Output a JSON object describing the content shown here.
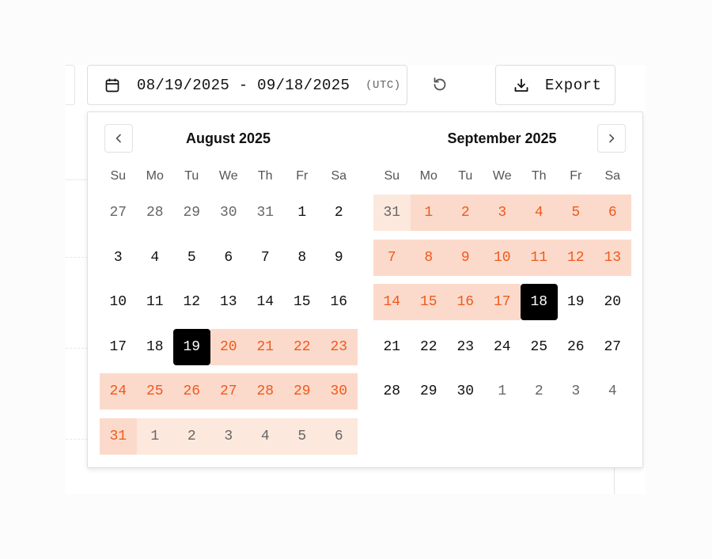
{
  "toolbar": {
    "date_range": "08/19/2025 - 09/18/2025",
    "timezone": "(UTC)",
    "export_label": "Export"
  },
  "weekdays": [
    "Su",
    "Mo",
    "Tu",
    "We",
    "Th",
    "Fr",
    "Sa"
  ],
  "colors": {
    "range_fill": "#fcdacb",
    "range_text": "#ee5a1e",
    "outside_range_fill": "#fce8dd",
    "selected_fill": "#000000"
  },
  "icons": {
    "calendar": "calendar-icon",
    "reset": "reset-icon",
    "export": "download-icon",
    "prev": "chevron-left-icon",
    "next": "chevron-right-icon"
  },
  "months": [
    {
      "title": "August 2025",
      "weeks": [
        [
          {
            "d": "27",
            "s": "outside"
          },
          {
            "d": "28",
            "s": "outside"
          },
          {
            "d": "29",
            "s": "outside"
          },
          {
            "d": "30",
            "s": "outside"
          },
          {
            "d": "31",
            "s": "outside"
          },
          {
            "d": "1",
            "s": "normal"
          },
          {
            "d": "2",
            "s": "normal"
          }
        ],
        [
          {
            "d": "3",
            "s": "normal"
          },
          {
            "d": "4",
            "s": "normal"
          },
          {
            "d": "5",
            "s": "normal"
          },
          {
            "d": "6",
            "s": "normal"
          },
          {
            "d": "7",
            "s": "normal"
          },
          {
            "d": "8",
            "s": "normal"
          },
          {
            "d": "9",
            "s": "normal"
          }
        ],
        [
          {
            "d": "10",
            "s": "normal"
          },
          {
            "d": "11",
            "s": "normal"
          },
          {
            "d": "12",
            "s": "normal"
          },
          {
            "d": "13",
            "s": "normal"
          },
          {
            "d": "14",
            "s": "normal"
          },
          {
            "d": "15",
            "s": "normal"
          },
          {
            "d": "16",
            "s": "normal"
          }
        ],
        [
          {
            "d": "17",
            "s": "normal"
          },
          {
            "d": "18",
            "s": "normal"
          },
          {
            "d": "19",
            "s": "selected"
          },
          {
            "d": "20",
            "s": "range"
          },
          {
            "d": "21",
            "s": "range"
          },
          {
            "d": "22",
            "s": "range"
          },
          {
            "d": "23",
            "s": "range"
          }
        ],
        [
          {
            "d": "24",
            "s": "range"
          },
          {
            "d": "25",
            "s": "range"
          },
          {
            "d": "26",
            "s": "range"
          },
          {
            "d": "27",
            "s": "range"
          },
          {
            "d": "28",
            "s": "range"
          },
          {
            "d": "29",
            "s": "range"
          },
          {
            "d": "30",
            "s": "range"
          }
        ],
        [
          {
            "d": "31",
            "s": "range"
          },
          {
            "d": "1",
            "s": "range-outside"
          },
          {
            "d": "2",
            "s": "range-outside"
          },
          {
            "d": "3",
            "s": "range-outside"
          },
          {
            "d": "4",
            "s": "range-outside"
          },
          {
            "d": "5",
            "s": "range-outside"
          },
          {
            "d": "6",
            "s": "range-outside"
          }
        ]
      ]
    },
    {
      "title": "September 2025",
      "weeks": [
        [
          {
            "d": "31",
            "s": "range-outside"
          },
          {
            "d": "1",
            "s": "range"
          },
          {
            "d": "2",
            "s": "range"
          },
          {
            "d": "3",
            "s": "range"
          },
          {
            "d": "4",
            "s": "range"
          },
          {
            "d": "5",
            "s": "range"
          },
          {
            "d": "6",
            "s": "range"
          }
        ],
        [
          {
            "d": "7",
            "s": "range"
          },
          {
            "d": "8",
            "s": "range"
          },
          {
            "d": "9",
            "s": "range"
          },
          {
            "d": "10",
            "s": "range"
          },
          {
            "d": "11",
            "s": "range"
          },
          {
            "d": "12",
            "s": "range"
          },
          {
            "d": "13",
            "s": "range"
          }
        ],
        [
          {
            "d": "14",
            "s": "range"
          },
          {
            "d": "15",
            "s": "range"
          },
          {
            "d": "16",
            "s": "range"
          },
          {
            "d": "17",
            "s": "range"
          },
          {
            "d": "18",
            "s": "selected"
          },
          {
            "d": "19",
            "s": "normal"
          },
          {
            "d": "20",
            "s": "normal"
          }
        ],
        [
          {
            "d": "21",
            "s": "normal"
          },
          {
            "d": "22",
            "s": "normal"
          },
          {
            "d": "23",
            "s": "normal"
          },
          {
            "d": "24",
            "s": "normal"
          },
          {
            "d": "25",
            "s": "normal"
          },
          {
            "d": "26",
            "s": "normal"
          },
          {
            "d": "27",
            "s": "normal"
          }
        ],
        [
          {
            "d": "28",
            "s": "normal"
          },
          {
            "d": "29",
            "s": "normal"
          },
          {
            "d": "30",
            "s": "normal"
          },
          {
            "d": "1",
            "s": "outside"
          },
          {
            "d": "2",
            "s": "outside"
          },
          {
            "d": "3",
            "s": "outside"
          },
          {
            "d": "4",
            "s": "outside"
          }
        ]
      ]
    }
  ]
}
